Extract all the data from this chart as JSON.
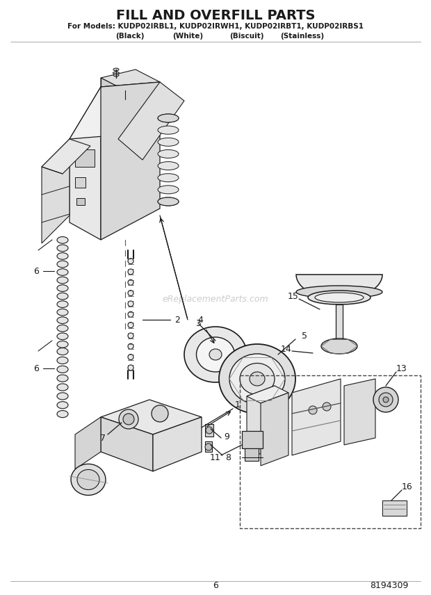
{
  "title": "FILL AND OVERFILL PARTS",
  "subtitle1": "For Models: KUDP02IRBL1, KUDP02IRWH1, KUDP02IRBT1, KUDP02IRBS1",
  "subtitle2_parts": [
    "(Black)",
    "(White)",
    "(Biscuit)",
    "(Stainless)"
  ],
  "page_num": "6",
  "doc_num": "8194309",
  "watermark": "eReplacementParts.com",
  "bg_color": "#ffffff",
  "text_color": "#1a1a1a",
  "line_color": "#2a2a2a",
  "gray_light": "#e8e8e8",
  "gray_mid": "#cccccc",
  "gray_dark": "#aaaaaa"
}
